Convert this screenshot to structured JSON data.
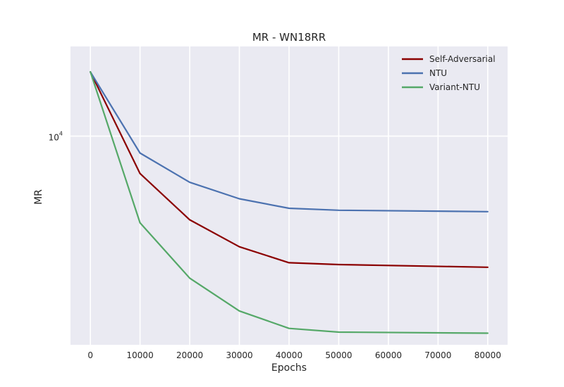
{
  "chart_data": {
    "type": "line",
    "title": "MR - WN18RR",
    "xlabel": "Epochs",
    "ylabel": "MR",
    "x": [
      0,
      10000,
      20000,
      30000,
      40000,
      50000,
      80000
    ],
    "xlim": [
      -4000,
      84000
    ],
    "ylim": [
      3350,
      16000
    ],
    "y_scale": "log",
    "x_ticks": [
      "0",
      "10000",
      "20000",
      "30000",
      "40000",
      "50000",
      "60000",
      "70000",
      "80000"
    ],
    "x_tick_values": [
      0,
      10000,
      20000,
      30000,
      40000,
      50000,
      60000,
      70000,
      80000
    ],
    "y_ticks": [
      {
        "value": 10000,
        "base": "10",
        "exp": "4"
      }
    ],
    "grid": true,
    "legend_position": "top-right",
    "series": [
      {
        "name": "Self-Adversarial",
        "color": "#8b0000",
        "values": [
          14000,
          8220,
          6450,
          5600,
          5150,
          5100,
          5030
        ]
      },
      {
        "name": "NTU",
        "color": "#4c72b0",
        "values": [
          14000,
          9150,
          7850,
          7200,
          6850,
          6780,
          6730
        ]
      },
      {
        "name": "Variant-NTU",
        "color": "#55a868",
        "values": [
          14000,
          6350,
          4750,
          4000,
          3650,
          3580,
          3560
        ]
      }
    ]
  }
}
